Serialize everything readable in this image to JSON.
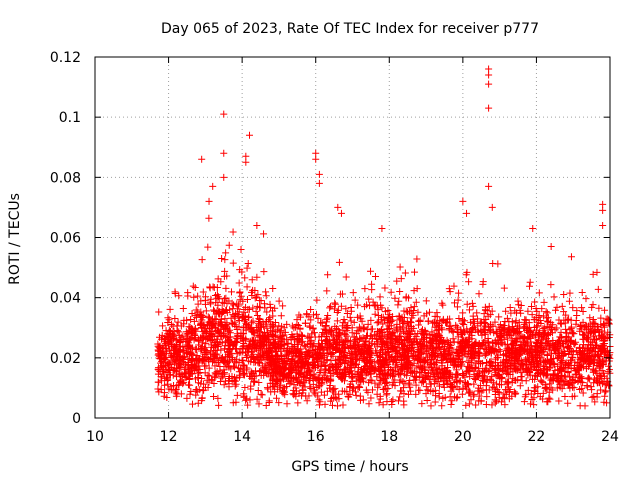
{
  "chart_data": {
    "type": "scatter",
    "title": "Day 065 of 2023, Rate Of TEC Index for receiver p777",
    "xlabel": "GPS time / hours",
    "ylabel": "ROTI / TECUs",
    "xlim": [
      10,
      24
    ],
    "ylim": [
      0,
      0.12
    ],
    "grid": true,
    "marker": "plus",
    "color": "#ff0000",
    "x_ticks": [
      10,
      12,
      14,
      16,
      18,
      20,
      22,
      24
    ],
    "x_tick_labels": [
      "10",
      "12",
      "14",
      "16",
      "18",
      "20",
      "22",
      "24"
    ],
    "y_ticks": [
      0,
      0.02,
      0.04,
      0.06,
      0.08,
      0.1,
      0.12
    ],
    "y_tick_labels": [
      "0",
      "0.02",
      "0.04",
      "0.06",
      "0.08",
      "0.1",
      "0.12"
    ],
    "coverage": {
      "start_hour": 11.7,
      "end_hour": 24.0
    },
    "series": [
      {
        "name": "ROTI",
        "notable_points": [
          {
            "x": 12.9,
            "y": 0.086
          },
          {
            "x": 13.1,
            "y": 0.072
          },
          {
            "x": 13.2,
            "y": 0.077
          },
          {
            "x": 13.5,
            "y": 0.088
          },
          {
            "x": 13.5,
            "y": 0.101
          },
          {
            "x": 13.5,
            "y": 0.08
          },
          {
            "x": 14.1,
            "y": 0.085
          },
          {
            "x": 14.1,
            "y": 0.087
          },
          {
            "x": 14.2,
            "y": 0.094
          },
          {
            "x": 14.4,
            "y": 0.064
          },
          {
            "x": 16.0,
            "y": 0.088
          },
          {
            "x": 16.0,
            "y": 0.086
          },
          {
            "x": 16.1,
            "y": 0.081
          },
          {
            "x": 16.1,
            "y": 0.078
          },
          {
            "x": 16.6,
            "y": 0.07
          },
          {
            "x": 16.7,
            "y": 0.068
          },
          {
            "x": 17.8,
            "y": 0.063
          },
          {
            "x": 20.0,
            "y": 0.072
          },
          {
            "x": 20.1,
            "y": 0.068
          },
          {
            "x": 20.7,
            "y": 0.116
          },
          {
            "x": 20.7,
            "y": 0.114
          },
          {
            "x": 20.7,
            "y": 0.111
          },
          {
            "x": 20.7,
            "y": 0.103
          },
          {
            "x": 20.7,
            "y": 0.077
          },
          {
            "x": 20.8,
            "y": 0.07
          },
          {
            "x": 21.9,
            "y": 0.063
          },
          {
            "x": 22.4,
            "y": 0.057
          },
          {
            "x": 23.8,
            "y": 0.071
          },
          {
            "x": 23.8,
            "y": 0.069
          },
          {
            "x": 23.8,
            "y": 0.064
          }
        ],
        "background_profile": [
          {
            "hour": 11.7,
            "base": 0.018,
            "spread": 0.01
          },
          {
            "hour": 12.0,
            "base": 0.02,
            "spread": 0.012
          },
          {
            "hour": 12.5,
            "base": 0.021,
            "spread": 0.013
          },
          {
            "hour": 13.0,
            "base": 0.024,
            "spread": 0.016
          },
          {
            "hour": 13.5,
            "base": 0.028,
            "spread": 0.018
          },
          {
            "hour": 14.0,
            "base": 0.026,
            "spread": 0.017
          },
          {
            "hour": 14.5,
            "base": 0.023,
            "spread": 0.015
          },
          {
            "hour": 15.0,
            "base": 0.019,
            "spread": 0.012
          },
          {
            "hour": 15.5,
            "base": 0.018,
            "spread": 0.011
          },
          {
            "hour": 16.0,
            "base": 0.019,
            "spread": 0.012
          },
          {
            "hour": 16.5,
            "base": 0.021,
            "spread": 0.013
          },
          {
            "hour": 17.0,
            "base": 0.02,
            "spread": 0.013
          },
          {
            "hour": 17.5,
            "base": 0.021,
            "spread": 0.013
          },
          {
            "hour": 18.0,
            "base": 0.022,
            "spread": 0.014
          },
          {
            "hour": 18.5,
            "base": 0.022,
            "spread": 0.014
          },
          {
            "hour": 19.0,
            "base": 0.021,
            "spread": 0.013
          },
          {
            "hour": 19.5,
            "base": 0.02,
            "spread": 0.013
          },
          {
            "hour": 20.0,
            "base": 0.021,
            "spread": 0.014
          },
          {
            "hour": 20.5,
            "base": 0.022,
            "spread": 0.015
          },
          {
            "hour": 21.0,
            "base": 0.02,
            "spread": 0.013
          },
          {
            "hour": 21.5,
            "base": 0.02,
            "spread": 0.013
          },
          {
            "hour": 22.0,
            "base": 0.02,
            "spread": 0.013
          },
          {
            "hour": 22.5,
            "base": 0.021,
            "spread": 0.013
          },
          {
            "hour": 23.0,
            "base": 0.019,
            "spread": 0.012
          },
          {
            "hour": 23.5,
            "base": 0.021,
            "spread": 0.014
          },
          {
            "hour": 24.0,
            "base": 0.02,
            "spread": 0.013
          }
        ]
      }
    ]
  }
}
